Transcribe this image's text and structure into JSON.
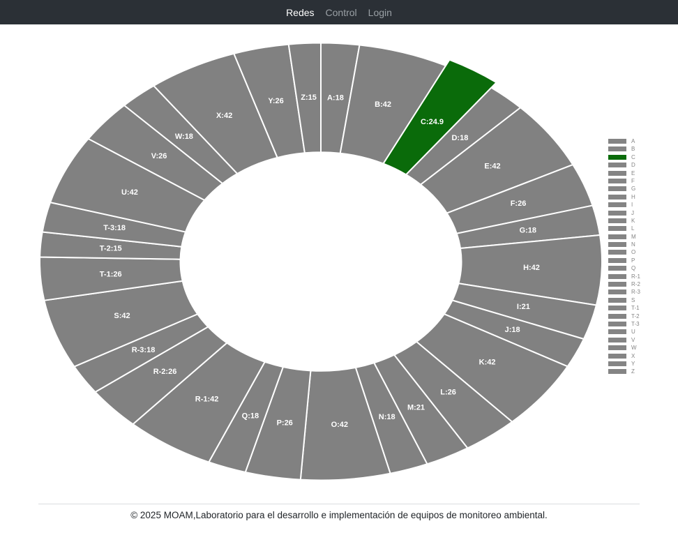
{
  "navbar": {
    "items": [
      {
        "label": "Redes",
        "active": true
      },
      {
        "label": "Control",
        "active": false
      },
      {
        "label": "Login",
        "active": false
      }
    ]
  },
  "chart_data": {
    "type": "pie",
    "subtype": "donut",
    "labels": [
      "A",
      "B",
      "C",
      "D",
      "E",
      "F",
      "G",
      "H",
      "I",
      "J",
      "K",
      "L",
      "M",
      "N",
      "O",
      "P",
      "Q",
      "R-1",
      "R-2",
      "R-3",
      "S",
      "T-1",
      "T-2",
      "T-3",
      "U",
      "V",
      "W",
      "X",
      "Y",
      "Z"
    ],
    "values": [
      18,
      42,
      24.9,
      18,
      42,
      26,
      18,
      42,
      21,
      18,
      42,
      26,
      21,
      18,
      42,
      26,
      18,
      42,
      26,
      18,
      42,
      26,
      15,
      18,
      42,
      26,
      18,
      42,
      26,
      15
    ],
    "highlight_index": 2,
    "highlight_label": "C",
    "highlight_value": 24.9,
    "colors": {
      "slice_default": "#818181",
      "slice_highlight": "#0a6b0a",
      "slice_border": "#ffffff",
      "legend_swatch_default": "#848484",
      "legend_swatch_highlight": "#0a6b0a",
      "legend_text": "#848484"
    },
    "inner_radius_ratio": 0.5,
    "start_angle": "top",
    "direction": "clockwise",
    "legend_position": "right",
    "slice_label_format": "LABEL:VALUE"
  },
  "footer": {
    "text": "© 2025 MOAM,Laboratorio para el desarrollo e implementación de equipos de monitoreo ambiental."
  }
}
